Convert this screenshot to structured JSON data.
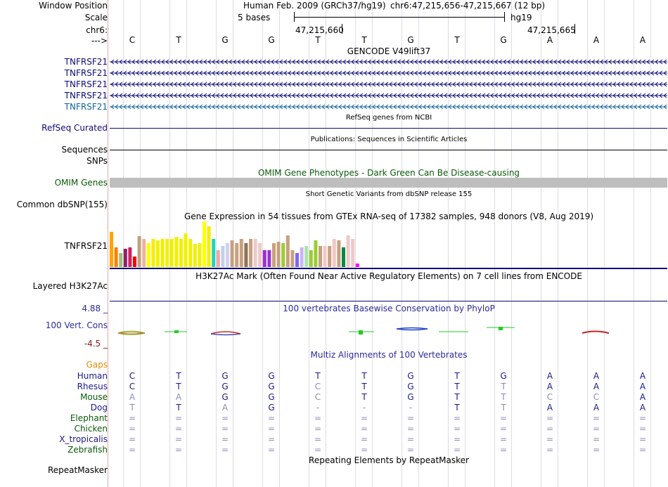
{
  "header": {
    "window_position_label": "Window Position",
    "scale_label": "Scale",
    "chrom_label": "chr6:",
    "strand_label": "--->",
    "assembly": "Human Feb. 2009 (GRCh37/hg19)",
    "position": "chr6:47,215,656-47,215,667 (12 bp)",
    "scale_text": "5 bases",
    "scale_db": "hg19",
    "coord_1": "47,215,660",
    "coord_2": "47,215,665"
  },
  "sequence": [
    "C",
    "T",
    "G",
    "G",
    "T",
    "T",
    "G",
    "T",
    "G",
    "A",
    "A",
    "A"
  ],
  "gencode": {
    "title": "GENCODE V49lift37",
    "genes": [
      "TNFRSF21",
      "TNFRSF21",
      "TNFRSF21",
      "TNFRSF21",
      "TNFRSF21"
    ],
    "colors": [
      "#0c0c78",
      "#0c0c78",
      "#0c0c78",
      "#0c0c78",
      "#12649a"
    ]
  },
  "refseq": {
    "title": "RefSeq genes from NCBI",
    "label": "RefSeq Curated"
  },
  "publications": {
    "title": "Publications: Sequences in Scientific Articles",
    "label": "Sequences"
  },
  "snps_label": "SNPs",
  "omim": {
    "title": "OMIM Gene Phenotypes - Dark Green Can Be Disease-causing",
    "label": "OMIM Genes",
    "color": "#0a5a0a",
    "bar_color": "#bebebe"
  },
  "dbsnp": {
    "title": "Short Genetic Variants from dbSNP release 155",
    "label": "Common dbSNP(155)"
  },
  "gtex": {
    "title": "Gene Expression in 54 tissues from GTEx RNA-seq of 17382 samples, 948 donors (V8, Aug 2019)",
    "label": "TNFRSF21",
    "values": [
      50,
      28,
      20,
      26,
      28,
      15,
      44,
      40,
      34,
      40,
      38,
      40,
      40,
      40,
      43,
      40,
      48,
      40,
      33,
      34,
      65,
      58,
      40,
      24,
      30,
      34,
      38,
      34,
      40,
      34,
      40,
      40,
      34,
      24,
      24,
      34,
      36,
      34,
      45,
      24,
      20,
      28,
      30,
      24,
      38,
      30,
      30,
      30,
      40,
      38,
      28,
      45,
      40,
      5
    ],
    "colors": [
      "#ffa500",
      "#ff7f00",
      "#9ac480",
      "#902066",
      "#d02062",
      "#ff0000",
      "#c0a080",
      "#f0b0a0",
      "#ffff00",
      "#f0f000",
      "#f0f000",
      "#f0f000",
      "#f0f000",
      "#f0f000",
      "#f0f000",
      "#f0f000",
      "#f0f000",
      "#f0f000",
      "#f0f000",
      "#f0f000",
      "#ffff00",
      "#f0f000",
      "#20d2c0",
      "#eeaaaa",
      "#c0d0e8",
      "#d0d0f0",
      "#c8a080",
      "#c8a080",
      "#c8a080",
      "#8b7355",
      "#c8a080",
      "#eec8c8",
      "#eec8c8",
      "#9932cc",
      "#9932cc",
      "#c8a080",
      "#c8a080",
      "#9acd32",
      "#c8a080",
      "#c8a080",
      "#7b68ee",
      "#cbb5f0",
      "#b0e0b0",
      "#9acd32",
      "#9acd32",
      "#c8a080",
      "#f0c8c8",
      "#c8a080",
      "#f0c8c8",
      "#c8a080",
      "#008b45",
      "#eec8c8",
      "#eec8c8",
      "#ff00ff"
    ]
  },
  "h3k27ac": {
    "title": "H3K27Ac Mark (Often Found Near Active Regulatory Elements) on 7 cell lines from ENCODE",
    "label": "Layered H3K27Ac"
  },
  "phylop": {
    "title": "100 vertebrates Basewise Conservation by PhyloP",
    "label": "100 Vert. Cons",
    "max": "4.88 _",
    "min": "-4.5 _"
  },
  "multiz": {
    "title": "Multiz Alignments of 100 Vertebrates",
    "gaps_label": "Gaps",
    "species": [
      {
        "name": "Human",
        "color": "#1a1a8c",
        "bases": [
          "C",
          "T",
          "G",
          "G",
          "T",
          "T",
          "G",
          "T",
          "G",
          "A",
          "A",
          "A"
        ]
      },
      {
        "name": "Rhesus",
        "color": "#1a1a8c",
        "bases": [
          "C",
          "T",
          "G",
          "G",
          "C",
          "T",
          "G",
          "T",
          "T",
          "A",
          "A",
          "A"
        ]
      },
      {
        "name": "Mouse",
        "color": "#0a5a0a",
        "bases": [
          "A",
          "A",
          "G",
          "G",
          "C",
          "T",
          "G",
          "T",
          "T",
          "C",
          "C",
          "A"
        ]
      },
      {
        "name": "Dog",
        "color": "#1a1a8c",
        "bases": [
          "T",
          "T",
          "A",
          "G",
          "-",
          "-",
          "-",
          "T",
          "T",
          "A",
          "A",
          "A"
        ]
      },
      {
        "name": "Elephant",
        "color": "#0a5a0a",
        "bases": [
          "=",
          "=",
          "=",
          "=",
          "=",
          "=",
          "=",
          "=",
          "=",
          "=",
          "=",
          "="
        ]
      },
      {
        "name": "Chicken",
        "color": "#0a5a0a",
        "bases": [
          "=",
          "=",
          "=",
          "=",
          "=",
          "=",
          "=",
          "=",
          "=",
          "=",
          "=",
          "="
        ]
      },
      {
        "name": "X_tropicalis",
        "color": "#1a1a8c",
        "bases": [
          "=",
          "=",
          "=",
          "=",
          "=",
          "=",
          "=",
          "=",
          "=",
          "=",
          "=",
          "="
        ]
      },
      {
        "name": "Zebrafish",
        "color": "#0a5a0a",
        "bases": [
          "=",
          "=",
          "=",
          "=",
          "=",
          "=",
          "=",
          "=",
          "=",
          "=",
          "=",
          "="
        ]
      }
    ],
    "weak": [
      [
        false,
        false,
        false,
        false,
        false,
        false,
        false,
        false,
        false,
        false,
        false,
        false
      ],
      [
        false,
        false,
        false,
        false,
        true,
        false,
        false,
        false,
        true,
        false,
        false,
        false
      ],
      [
        true,
        true,
        false,
        false,
        true,
        false,
        false,
        false,
        true,
        true,
        true,
        false
      ],
      [
        true,
        false,
        true,
        false,
        true,
        true,
        true,
        false,
        true,
        false,
        false,
        false
      ],
      [
        true,
        true,
        true,
        true,
        true,
        true,
        true,
        true,
        true,
        true,
        true,
        true
      ],
      [
        true,
        true,
        true,
        true,
        true,
        true,
        true,
        true,
        true,
        true,
        true,
        true
      ],
      [
        true,
        true,
        true,
        true,
        true,
        true,
        true,
        true,
        true,
        true,
        true,
        true
      ],
      [
        true,
        true,
        true,
        true,
        true,
        true,
        true,
        true,
        true,
        true,
        true,
        true
      ]
    ]
  },
  "repeatmasker": {
    "title": "Repeating Elements by RepeatMasker",
    "label": "RepeatMasker"
  }
}
